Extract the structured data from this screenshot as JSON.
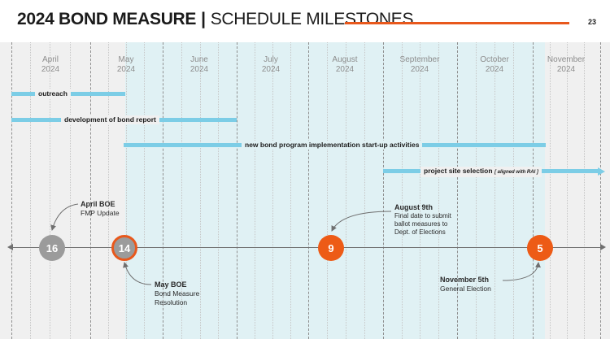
{
  "header": {
    "title_bold": "2024 BOND MEASURE",
    "separator": "|",
    "title_sub": "SCHEDULE MILESTONES",
    "page_number": "23",
    "accent_color": "#e8581c"
  },
  "months": [
    {
      "name": "April",
      "year": "2024"
    },
    {
      "name": "May",
      "year": "2024"
    },
    {
      "name": "June",
      "year": "2024"
    },
    {
      "name": "July",
      "year": "2024"
    },
    {
      "name": "August",
      "year": "2024"
    },
    {
      "name": "September",
      "year": "2024"
    },
    {
      "name": "October",
      "year": "2024"
    },
    {
      "name": "November",
      "year": "2024"
    }
  ],
  "activities": [
    {
      "label": "outreach"
    },
    {
      "label": "development of bond report"
    },
    {
      "label": "new bond program implementation start-up activities"
    },
    {
      "label": "project site selection",
      "note": "[ aligned with RAI ]"
    }
  ],
  "milestones": [
    {
      "day": "16",
      "title": "April BOE",
      "detail": "FMP Update",
      "color": "gray"
    },
    {
      "day": "14",
      "title": "May BOE",
      "detail_lines": [
        "Bond Measure",
        "Resolution"
      ],
      "color": "gray-orange-ring"
    },
    {
      "day": "9",
      "title": "August 9th",
      "detail_lines": [
        "Final date to submit",
        "ballot measures to",
        "Dept. of Elections"
      ],
      "color": "orange"
    },
    {
      "day": "5",
      "title": "November 5th",
      "detail": "General Election",
      "color": "orange"
    }
  ],
  "colors": {
    "bar": "#7ccde6",
    "shade": "#e0f1f4",
    "orange": "#ed5b16",
    "gray": "#9b9b9b"
  }
}
